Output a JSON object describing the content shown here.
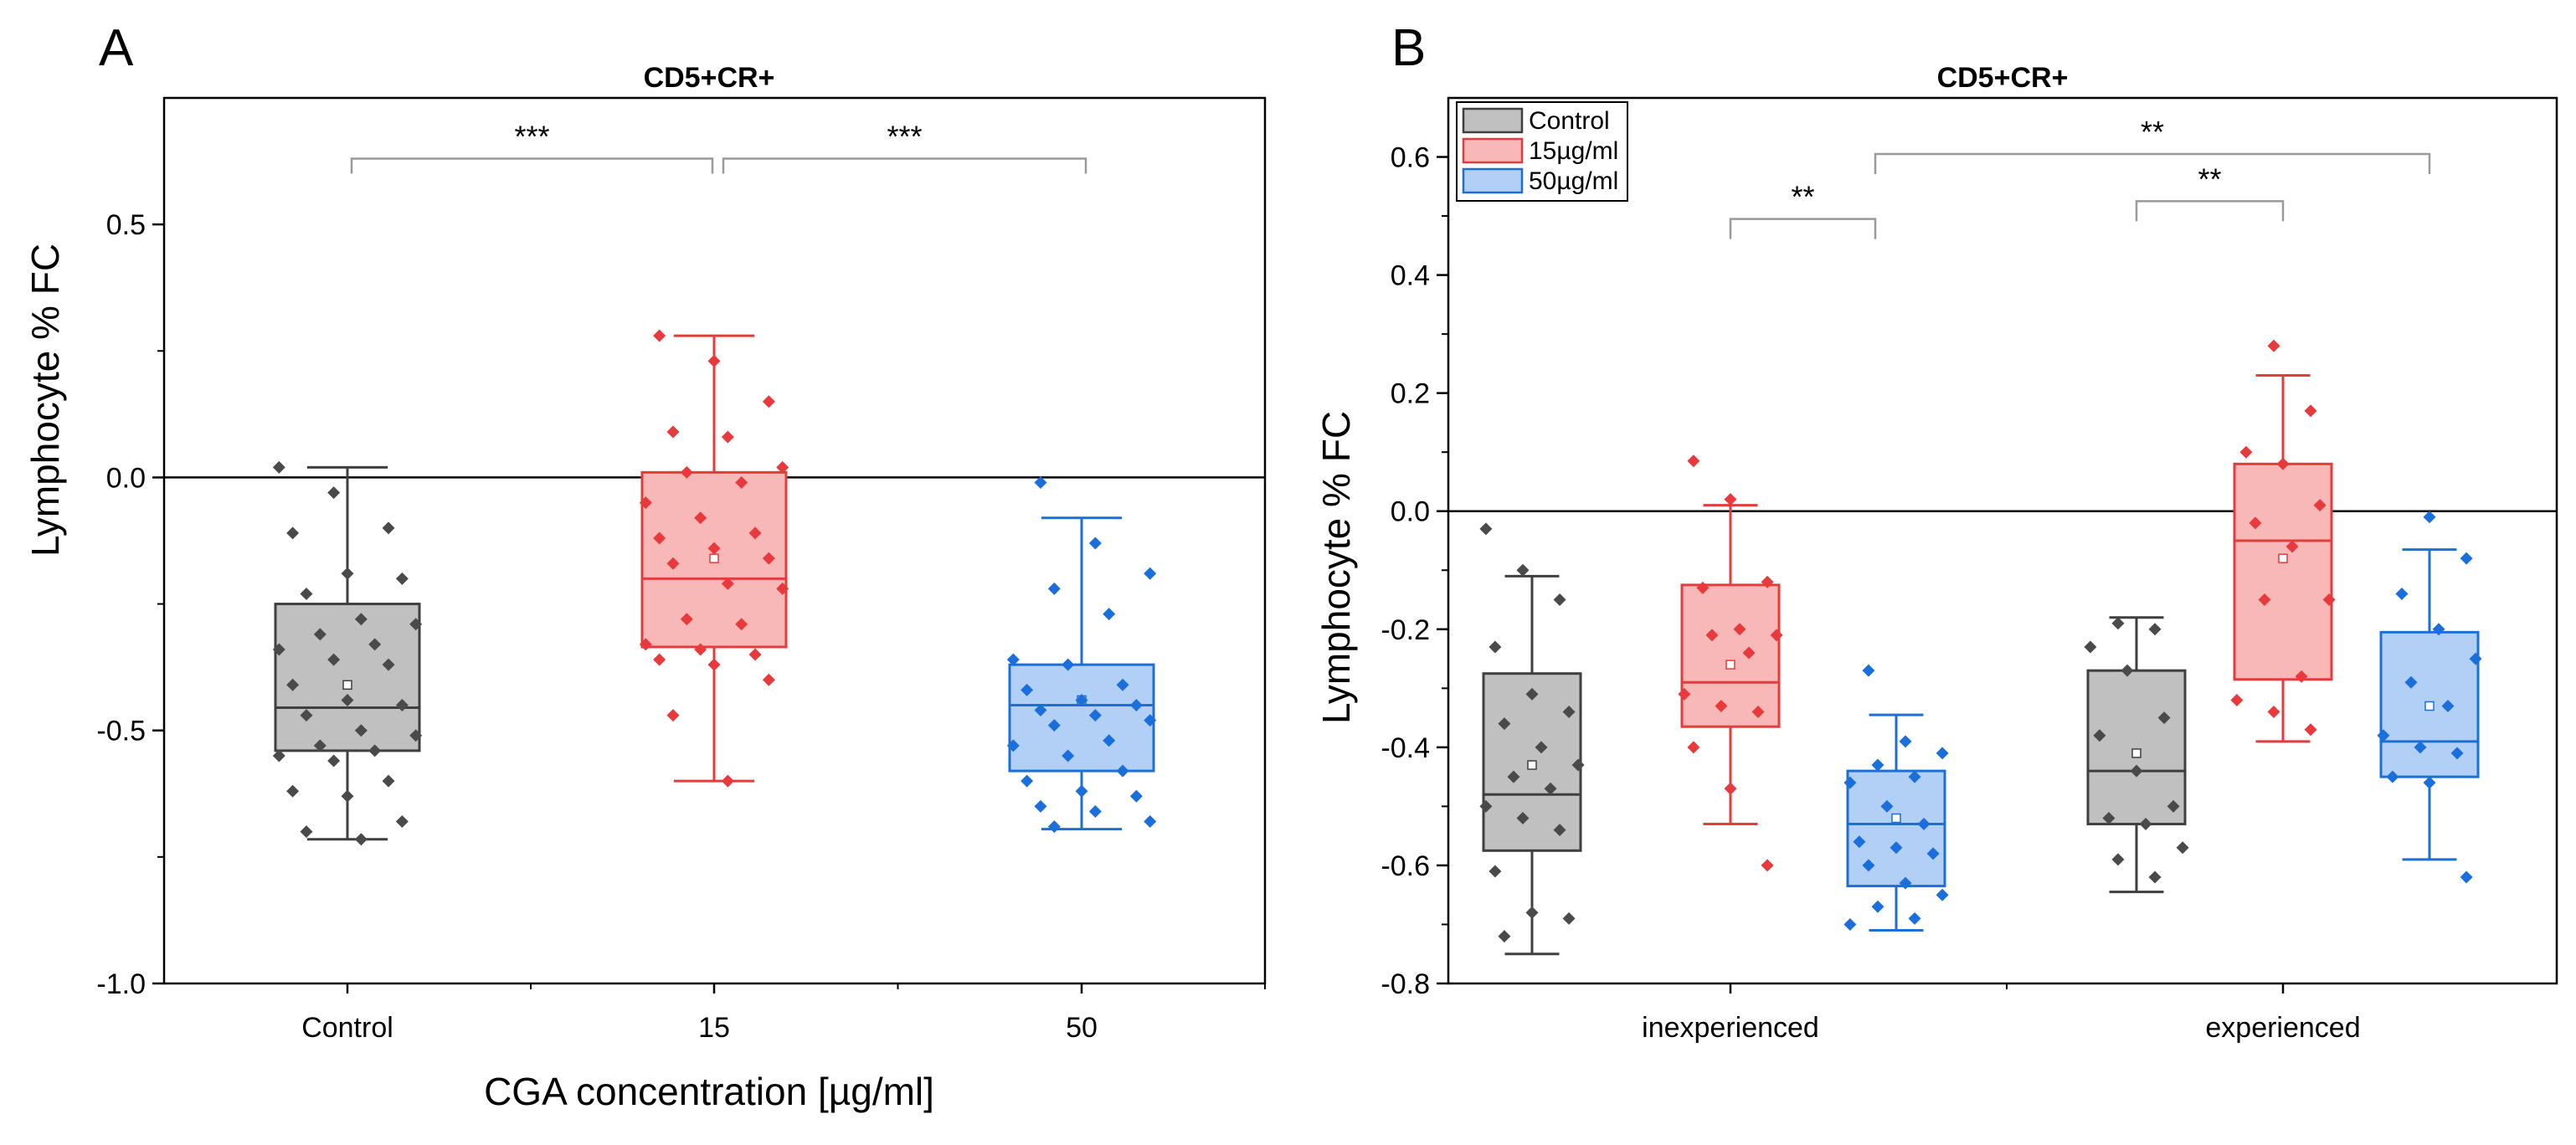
{
  "colors": {
    "control": {
      "fill": "#c0c0c0",
      "stroke": "#3f3f3f",
      "point": "#4a4a4a"
    },
    "c15": {
      "fill": "#f9b8b8",
      "stroke": "#e23c3c",
      "point": "#e8393c"
    },
    "c50": {
      "fill": "#b2cff5",
      "stroke": "#1d6fd6",
      "point": "#1a6fdc"
    },
    "bracket": "#9a9a9a"
  },
  "chart_data": [
    {
      "panel": "A",
      "type": "box",
      "title": "CD5+CR+",
      "xlabel": "CGA concentration [µg/ml]",
      "ylabel": "Lymphocyte % FC",
      "ylim": [
        -1.0,
        0.75
      ],
      "yticks": [
        -1.0,
        -0.5,
        0.0,
        0.5
      ],
      "ytick_labels": [
        "-1.0",
        "-0.5",
        "0.0",
        "0.5"
      ],
      "reference_line": 0.0,
      "categories": [
        "Control",
        "15",
        "50"
      ],
      "boxes": [
        {
          "category": "Control",
          "color": "control",
          "whisker_low": -0.715,
          "q1": -0.54,
          "median": -0.455,
          "mean": -0.41,
          "q3": -0.25,
          "whisker_high": 0.02,
          "points": [
            0.02,
            -0.03,
            -0.1,
            -0.11,
            -0.19,
            -0.2,
            -0.23,
            -0.28,
            -0.29,
            -0.31,
            -0.33,
            -0.34,
            -0.36,
            -0.37,
            -0.41,
            -0.44,
            -0.45,
            -0.47,
            -0.5,
            -0.51,
            -0.53,
            -0.54,
            -0.55,
            -0.56,
            -0.6,
            -0.62,
            -0.63,
            -0.68,
            -0.7,
            -0.715
          ]
        },
        {
          "category": "15",
          "color": "c15",
          "whisker_low": -0.6,
          "q1": -0.335,
          "median": -0.2,
          "mean": -0.16,
          "q3": 0.01,
          "whisker_high": 0.28,
          "points": [
            0.28,
            0.23,
            0.15,
            0.09,
            0.08,
            0.02,
            0.01,
            -0.01,
            -0.05,
            -0.08,
            -0.11,
            -0.12,
            -0.14,
            -0.16,
            -0.17,
            -0.21,
            -0.22,
            -0.28,
            -0.29,
            -0.33,
            -0.34,
            -0.35,
            -0.36,
            -0.37,
            -0.4,
            -0.47,
            -0.6
          ]
        },
        {
          "category": "50",
          "color": "c50",
          "whisker_low": -0.695,
          "q1": -0.58,
          "median": -0.45,
          "mean": -0.44,
          "q3": -0.37,
          "whisker_high": -0.08,
          "points": [
            -0.01,
            -0.13,
            -0.19,
            -0.22,
            -0.27,
            -0.36,
            -0.37,
            -0.41,
            -0.42,
            -0.44,
            -0.45,
            -0.46,
            -0.47,
            -0.48,
            -0.49,
            -0.52,
            -0.53,
            -0.55,
            -0.58,
            -0.6,
            -0.62,
            -0.63,
            -0.65,
            -0.66,
            -0.68,
            -0.69
          ]
        }
      ],
      "significance": [
        {
          "from": "Control",
          "to": "15",
          "label": "***"
        },
        {
          "from": "15",
          "to": "50",
          "label": "***"
        }
      ]
    },
    {
      "panel": "B",
      "type": "box",
      "title": "CD5+CR+",
      "xlabel": "",
      "ylabel": "Lymphocyte % FC",
      "ylim": [
        -0.8,
        0.7
      ],
      "yticks": [
        -0.8,
        -0.6,
        -0.4,
        -0.2,
        0.0,
        0.2,
        0.4,
        0.6
      ],
      "ytick_labels": [
        "-0.8",
        "-0.6",
        "-0.4",
        "-0.2",
        "0.0",
        "0.2",
        "0.4",
        "0.6"
      ],
      "reference_line": 0.0,
      "categories": [
        "inexperienced",
        "experienced"
      ],
      "legend": {
        "position": "top-left",
        "entries": [
          {
            "label": "Control",
            "color": "control"
          },
          {
            "label": "15µg/ml",
            "color": "c15"
          },
          {
            "label": "50µg/ml",
            "color": "c50"
          }
        ]
      },
      "boxes": [
        {
          "group": "inexperienced",
          "series": "Control",
          "color": "control",
          "whisker_low": -0.75,
          "q1": -0.575,
          "median": -0.48,
          "mean": -0.43,
          "q3": -0.275,
          "whisker_high": -0.11,
          "points": [
            -0.03,
            -0.1,
            -0.15,
            -0.23,
            -0.31,
            -0.34,
            -0.36,
            -0.4,
            -0.43,
            -0.45,
            -0.47,
            -0.5,
            -0.52,
            -0.54,
            -0.61,
            -0.68,
            -0.69,
            -0.72
          ]
        },
        {
          "group": "inexperienced",
          "series": "15µg/ml",
          "color": "c15",
          "whisker_low": -0.53,
          "q1": -0.365,
          "median": -0.29,
          "mean": -0.26,
          "q3": -0.125,
          "whisker_high": 0.01,
          "points": [
            0.085,
            0.02,
            -0.12,
            -0.13,
            -0.2,
            -0.21,
            -0.21,
            -0.24,
            -0.31,
            -0.33,
            -0.34,
            -0.4,
            -0.47,
            -0.6
          ]
        },
        {
          "group": "inexperienced",
          "series": "50µg/ml",
          "color": "c50",
          "whisker_low": -0.71,
          "q1": -0.635,
          "median": -0.53,
          "mean": -0.52,
          "q3": -0.44,
          "whisker_high": -0.345,
          "points": [
            -0.27,
            -0.39,
            -0.41,
            -0.43,
            -0.45,
            -0.46,
            -0.5,
            -0.53,
            -0.56,
            -0.57,
            -0.58,
            -0.6,
            -0.63,
            -0.65,
            -0.67,
            -0.69,
            -0.7
          ]
        },
        {
          "group": "experienced",
          "series": "Control",
          "color": "control",
          "whisker_low": -0.645,
          "q1": -0.53,
          "median": -0.44,
          "mean": -0.41,
          "q3": -0.27,
          "whisker_high": -0.18,
          "points": [
            -0.19,
            -0.2,
            -0.23,
            -0.27,
            -0.35,
            -0.38,
            -0.44,
            -0.5,
            -0.52,
            -0.53,
            -0.57,
            -0.59,
            -0.62
          ]
        },
        {
          "group": "experienced",
          "series": "15µg/ml",
          "color": "c15",
          "whisker_low": -0.39,
          "q1": -0.285,
          "median": -0.05,
          "mean": -0.08,
          "q3": 0.08,
          "whisker_high": 0.23,
          "points": [
            0.28,
            0.17,
            0.1,
            0.08,
            0.01,
            -0.02,
            -0.06,
            -0.15,
            -0.15,
            -0.28,
            -0.32,
            -0.34,
            -0.37
          ]
        },
        {
          "group": "experienced",
          "series": "50µg/ml",
          "color": "c50",
          "whisker_low": -0.59,
          "q1": -0.45,
          "median": -0.39,
          "mean": -0.33,
          "q3": -0.205,
          "whisker_high": -0.065,
          "points": [
            -0.01,
            -0.08,
            -0.14,
            -0.2,
            -0.25,
            -0.29,
            -0.33,
            -0.38,
            -0.4,
            -0.41,
            -0.45,
            -0.46,
            -0.62
          ]
        }
      ],
      "significance": [
        {
          "from": "inexperienced / 15µg/ml",
          "to": "inexperienced / 50µg/ml",
          "label": "**"
        },
        {
          "from": "experienced / Control",
          "to": "experienced / 15µg/ml",
          "label": "**"
        },
        {
          "from": "inexperienced / 50µg/ml",
          "to": "experienced / 50µg/ml",
          "label": "**"
        }
      ]
    }
  ]
}
